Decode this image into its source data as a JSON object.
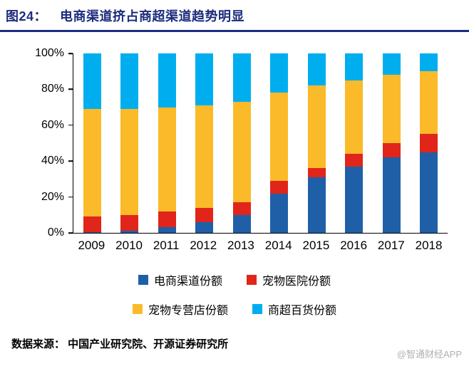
{
  "header": {
    "figure_label": "图24：",
    "title": "电商渠道挤占商超渠道趋势明显",
    "accent_color": "#1c2c7d"
  },
  "chart_data": {
    "type": "bar",
    "stacked": true,
    "percent": true,
    "title": "电商渠道挤占商超渠道趋势明显",
    "xlabel": "",
    "ylabel": "",
    "ylim": [
      0,
      100
    ],
    "grid": false,
    "legend_position": "bottom",
    "categories": [
      "2009",
      "2010",
      "2011",
      "2012",
      "2013",
      "2014",
      "2015",
      "2016",
      "2017",
      "2018"
    ],
    "y_ticks_top_to_bottom": [
      "100%",
      "80%",
      "60%",
      "40%",
      "20%",
      "0%"
    ],
    "series": [
      {
        "name": "电商渠道份额",
        "color": "#1f5fa8",
        "values": [
          0.5,
          1,
          3,
          6,
          10,
          22,
          31,
          37,
          42,
          45
        ]
      },
      {
        "name": "宠物医院份额",
        "color": "#e1251b",
        "values": [
          8.5,
          9,
          9,
          8,
          7,
          7,
          5,
          7,
          8,
          10
        ]
      },
      {
        "name": "宠物专营店份额",
        "color": "#fbba29",
        "values": [
          60,
          59,
          58,
          57,
          56,
          49,
          46,
          41,
          38,
          35
        ]
      },
      {
        "name": "商超百货份额",
        "color": "#00aeef",
        "values": [
          31,
          31,
          30,
          29,
          27,
          22,
          18,
          15,
          12,
          10
        ]
      }
    ]
  },
  "footer": {
    "source": "数据来源：  中国产业研究院、开源证券研究所",
    "watermark": "@智通财经APP"
  }
}
